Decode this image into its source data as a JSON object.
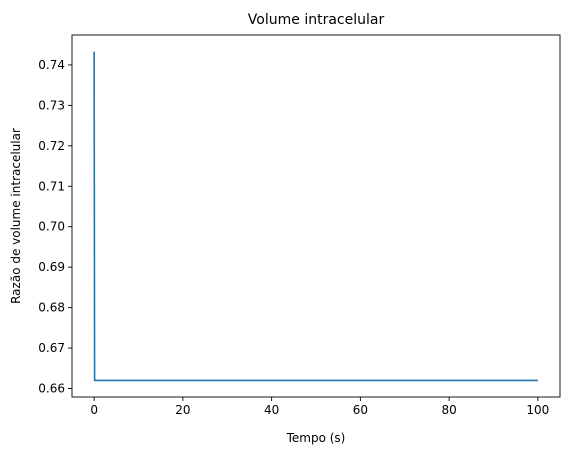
{
  "chart_data": {
    "type": "line",
    "title": "Volume intracelular",
    "xlabel": "Tempo (s)",
    "ylabel": "Razão de volume intracelular",
    "xlim": [
      -4.99,
      104.99
    ],
    "ylim": [
      0.6579,
      0.7474
    ],
    "xticks": [
      0,
      20,
      40,
      60,
      80,
      100
    ],
    "yticks": [
      0.66,
      0.67,
      0.68,
      0.69,
      0.7,
      0.71,
      0.72,
      0.73,
      0.74
    ],
    "ytick_labels": [
      "0.66",
      "0.67",
      "0.68",
      "0.69",
      "0.70",
      "0.71",
      "0.72",
      "0.73",
      "0.74"
    ],
    "grid": false,
    "series": [
      {
        "color": "#1f77b4",
        "x": [
          0,
          0.1,
          100
        ],
        "y": [
          0.7433,
          0.662,
          0.662
        ]
      }
    ]
  }
}
